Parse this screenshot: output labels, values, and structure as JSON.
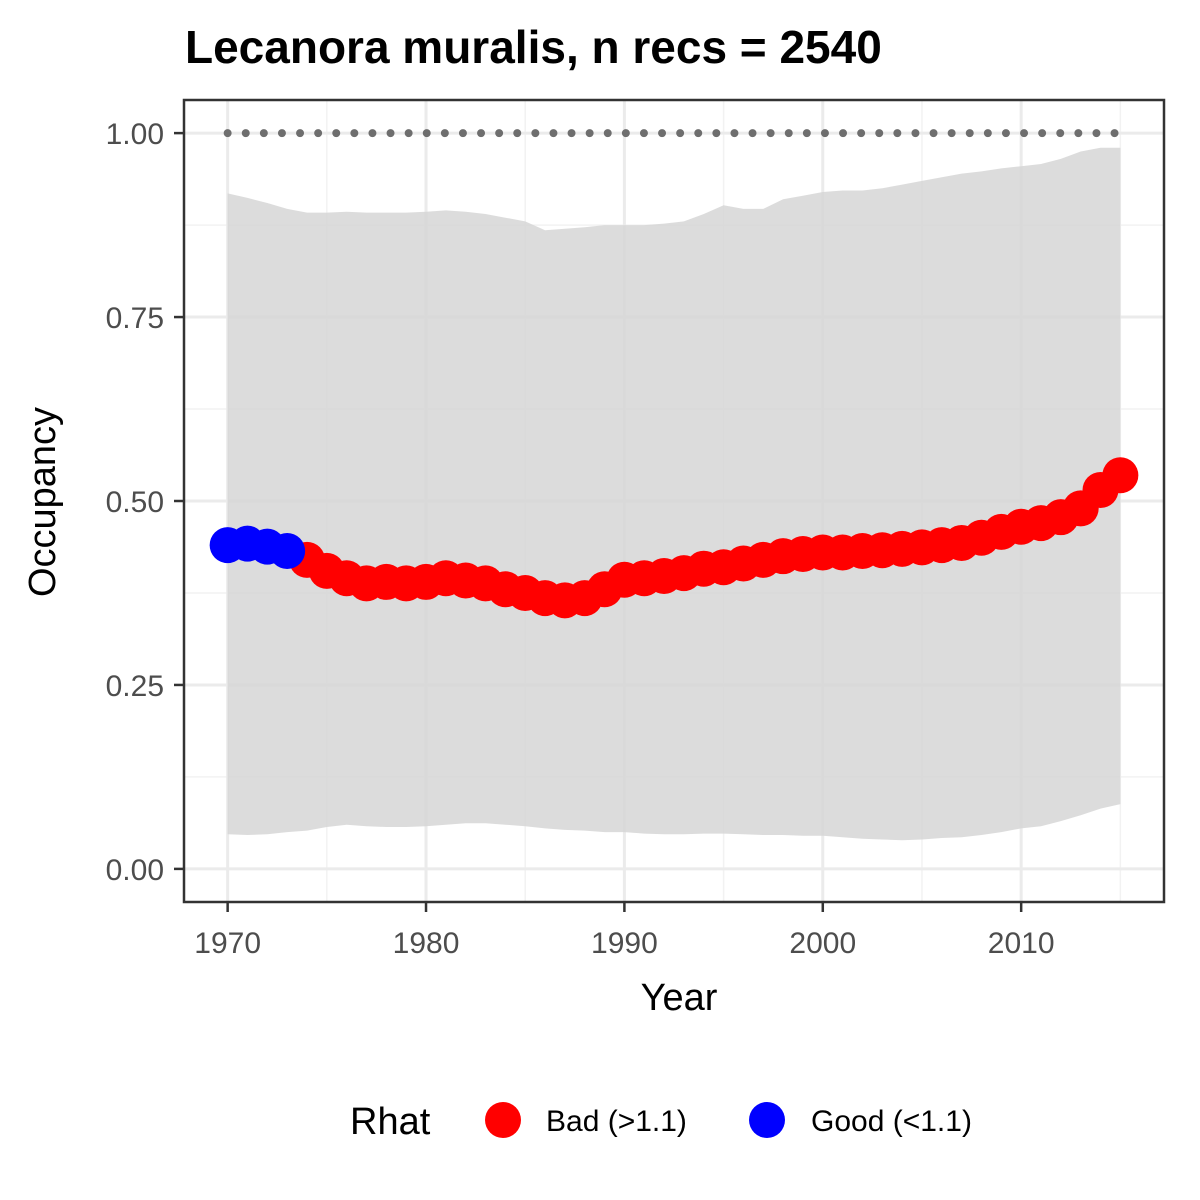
{
  "chart_data": {
    "type": "line",
    "title": "Lecanora muralis, n recs = 2540",
    "xlabel": "Year",
    "ylabel": "Occupancy",
    "xlim": [
      1967.8,
      2017.2
    ],
    "ylim": [
      -0.045,
      1.045
    ],
    "x_ticks": [
      1970,
      1980,
      1990,
      2000,
      2010
    ],
    "y_ticks": [
      0.0,
      0.25,
      0.5,
      0.75,
      1.0
    ],
    "x_tick_labels": [
      "1970",
      "1980",
      "1990",
      "2000",
      "2010"
    ],
    "y_tick_labels": [
      "0.00",
      "0.25",
      "0.50",
      "0.75",
      "1.00"
    ],
    "grid": true,
    "legend_placement": "bottom",
    "legend": {
      "title": "Rhat",
      "entries": [
        {
          "label": "Bad (>1.1)",
          "color": "#ff0000"
        },
        {
          "label": "Good (<1.1)",
          "color": "#0000ff"
        }
      ]
    },
    "series": [
      {
        "label": "Bad (>1.1)",
        "color": "#ff0000",
        "x": [
          1974,
          1975,
          1976,
          1977,
          1978,
          1979,
          1980,
          1981,
          1982,
          1983,
          1984,
          1985,
          1986,
          1987,
          1988,
          1989,
          1990,
          1991,
          1992,
          1993,
          1994,
          1995,
          1996,
          1997,
          1998,
          1999,
          2000,
          2001,
          2002,
          2003,
          2004,
          2005,
          2006,
          2007,
          2008,
          2009,
          2010,
          2011,
          2012,
          2013,
          2014,
          2015
        ],
        "y": [
          0.42,
          0.405,
          0.395,
          0.388,
          0.39,
          0.388,
          0.39,
          0.395,
          0.392,
          0.388,
          0.38,
          0.375,
          0.368,
          0.365,
          0.368,
          0.38,
          0.393,
          0.395,
          0.398,
          0.402,
          0.408,
          0.41,
          0.415,
          0.42,
          0.425,
          0.428,
          0.43,
          0.43,
          0.432,
          0.433,
          0.435,
          0.437,
          0.44,
          0.443,
          0.45,
          0.458,
          0.465,
          0.47,
          0.478,
          0.49,
          0.515,
          0.535
        ]
      },
      {
        "label": "Good (<1.1)",
        "color": "#0000ff",
        "x": [
          1970,
          1971,
          1972,
          1973
        ],
        "y": [
          0.44,
          0.442,
          0.438,
          0.432
        ]
      }
    ],
    "ribbon": {
      "color": "#d6d6d6",
      "x": [
        1970,
        1971,
        1972,
        1973,
        1974,
        1975,
        1976,
        1977,
        1978,
        1979,
        1980,
        1981,
        1982,
        1983,
        1984,
        1985,
        1986,
        1987,
        1988,
        1989,
        1990,
        1991,
        1992,
        1993,
        1994,
        1995,
        1996,
        1997,
        1998,
        1999,
        2000,
        2001,
        2002,
        2003,
        2004,
        2005,
        2006,
        2007,
        2008,
        2009,
        2010,
        2011,
        2012,
        2013,
        2014,
        2015
      ],
      "upper": [
        0.918,
        0.912,
        0.905,
        0.897,
        0.892,
        0.892,
        0.893,
        0.892,
        0.892,
        0.892,
        0.893,
        0.895,
        0.893,
        0.89,
        0.885,
        0.88,
        0.868,
        0.87,
        0.872,
        0.875,
        0.875,
        0.875,
        0.877,
        0.88,
        0.89,
        0.902,
        0.897,
        0.897,
        0.91,
        0.915,
        0.92,
        0.922,
        0.922,
        0.925,
        0.93,
        0.935,
        0.94,
        0.945,
        0.948,
        0.952,
        0.955,
        0.958,
        0.965,
        0.975,
        0.98,
        0.98
      ],
      "lower": [
        0.047,
        0.046,
        0.047,
        0.05,
        0.052,
        0.057,
        0.06,
        0.058,
        0.057,
        0.057,
        0.058,
        0.06,
        0.062,
        0.062,
        0.06,
        0.058,
        0.055,
        0.053,
        0.052,
        0.05,
        0.05,
        0.048,
        0.047,
        0.047,
        0.048,
        0.048,
        0.047,
        0.046,
        0.046,
        0.045,
        0.045,
        0.043,
        0.041,
        0.04,
        0.039,
        0.04,
        0.042,
        0.043,
        0.046,
        0.05,
        0.055,
        0.058,
        0.065,
        0.073,
        0.082,
        0.088
      ]
    },
    "reference_line": {
      "y": 1.0,
      "style": "dotted",
      "color": "#6e6e6e",
      "x_range": [
        1970,
        2015
      ]
    }
  }
}
